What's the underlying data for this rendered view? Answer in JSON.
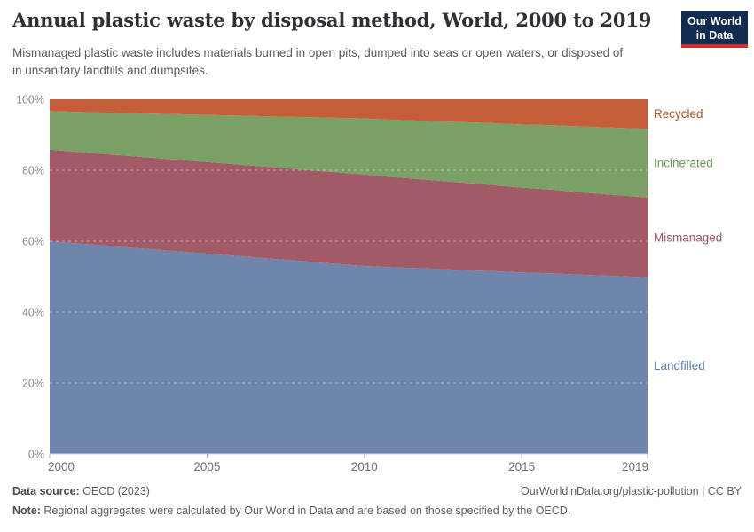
{
  "header": {
    "title": "Annual plastic waste by disposal method, World, 2000 to 2019",
    "subtitle": "Mismanaged plastic waste includes materials burned in open pits, dumped into seas or open waters, or disposed of in unsanitary landfills and dumpsites.",
    "logo": {
      "line1": "Our World",
      "line2": "in Data",
      "bg": "#112c4f",
      "stripe": "#cf302b"
    }
  },
  "chart_data": {
    "type": "area",
    "stacked": true,
    "unit": "%",
    "title": "Annual plastic waste by disposal method, World, 2000 to 2019",
    "xlabel": "",
    "ylabel": "",
    "ylim": [
      0,
      100
    ],
    "yticks": [
      0,
      20,
      40,
      60,
      80,
      100
    ],
    "ytick_suffix": "%",
    "xticks": [
      2000,
      2005,
      2010,
      2015,
      2019
    ],
    "grid": "dashed",
    "legend_position": "right-of-plot",
    "x": [
      2000,
      2001,
      2002,
      2003,
      2004,
      2005,
      2006,
      2007,
      2008,
      2009,
      2010,
      2011,
      2012,
      2013,
      2014,
      2015,
      2016,
      2017,
      2018,
      2019
    ],
    "series": [
      {
        "name": "Landfilled",
        "color": "#6e85ad",
        "label_color": "#5a7caf",
        "values": [
          60.0,
          59.3,
          58.6,
          57.9,
          57.2,
          56.5,
          55.8,
          55.1,
          54.4,
          53.7,
          53.0,
          52.6,
          52.3,
          51.9,
          51.6,
          51.2,
          50.9,
          50.5,
          50.2,
          49.8
        ]
      },
      {
        "name": "Mismanaged",
        "color": "#a15a66",
        "label_color": "#a2505d",
        "values": [
          25.8,
          25.8,
          25.8,
          25.8,
          25.8,
          25.8,
          25.8,
          25.8,
          25.8,
          25.8,
          25.8,
          25.4,
          25.0,
          24.7,
          24.3,
          23.9,
          23.6,
          23.2,
          22.8,
          22.5
        ]
      },
      {
        "name": "Incinerated",
        "color": "#7aa065",
        "label_color": "#6b9a5e",
        "values": [
          10.9,
          11.3,
          11.8,
          12.3,
          12.8,
          13.3,
          13.8,
          14.3,
          14.8,
          15.3,
          15.8,
          16.2,
          16.6,
          17.0,
          17.4,
          17.8,
          18.2,
          18.6,
          19.0,
          19.4
        ]
      },
      {
        "name": "Recycled",
        "color": "#c45e38",
        "label_color": "#b1502a",
        "values": [
          3.3,
          3.6,
          3.8,
          4.0,
          4.2,
          4.4,
          4.6,
          4.8,
          5.0,
          5.2,
          5.4,
          5.8,
          6.1,
          6.4,
          6.7,
          7.1,
          7.3,
          7.7,
          8.0,
          8.3
        ]
      }
    ]
  },
  "footer": {
    "source_label": "Data source:",
    "source_value": " OECD (2023)",
    "note_label": "Note:",
    "note_value": " Regional aggregates were calculated by Our World in Data and are based on those specified by the OECD.",
    "link": "OurWorldinData.org/plastic-pollution | CC BY"
  }
}
